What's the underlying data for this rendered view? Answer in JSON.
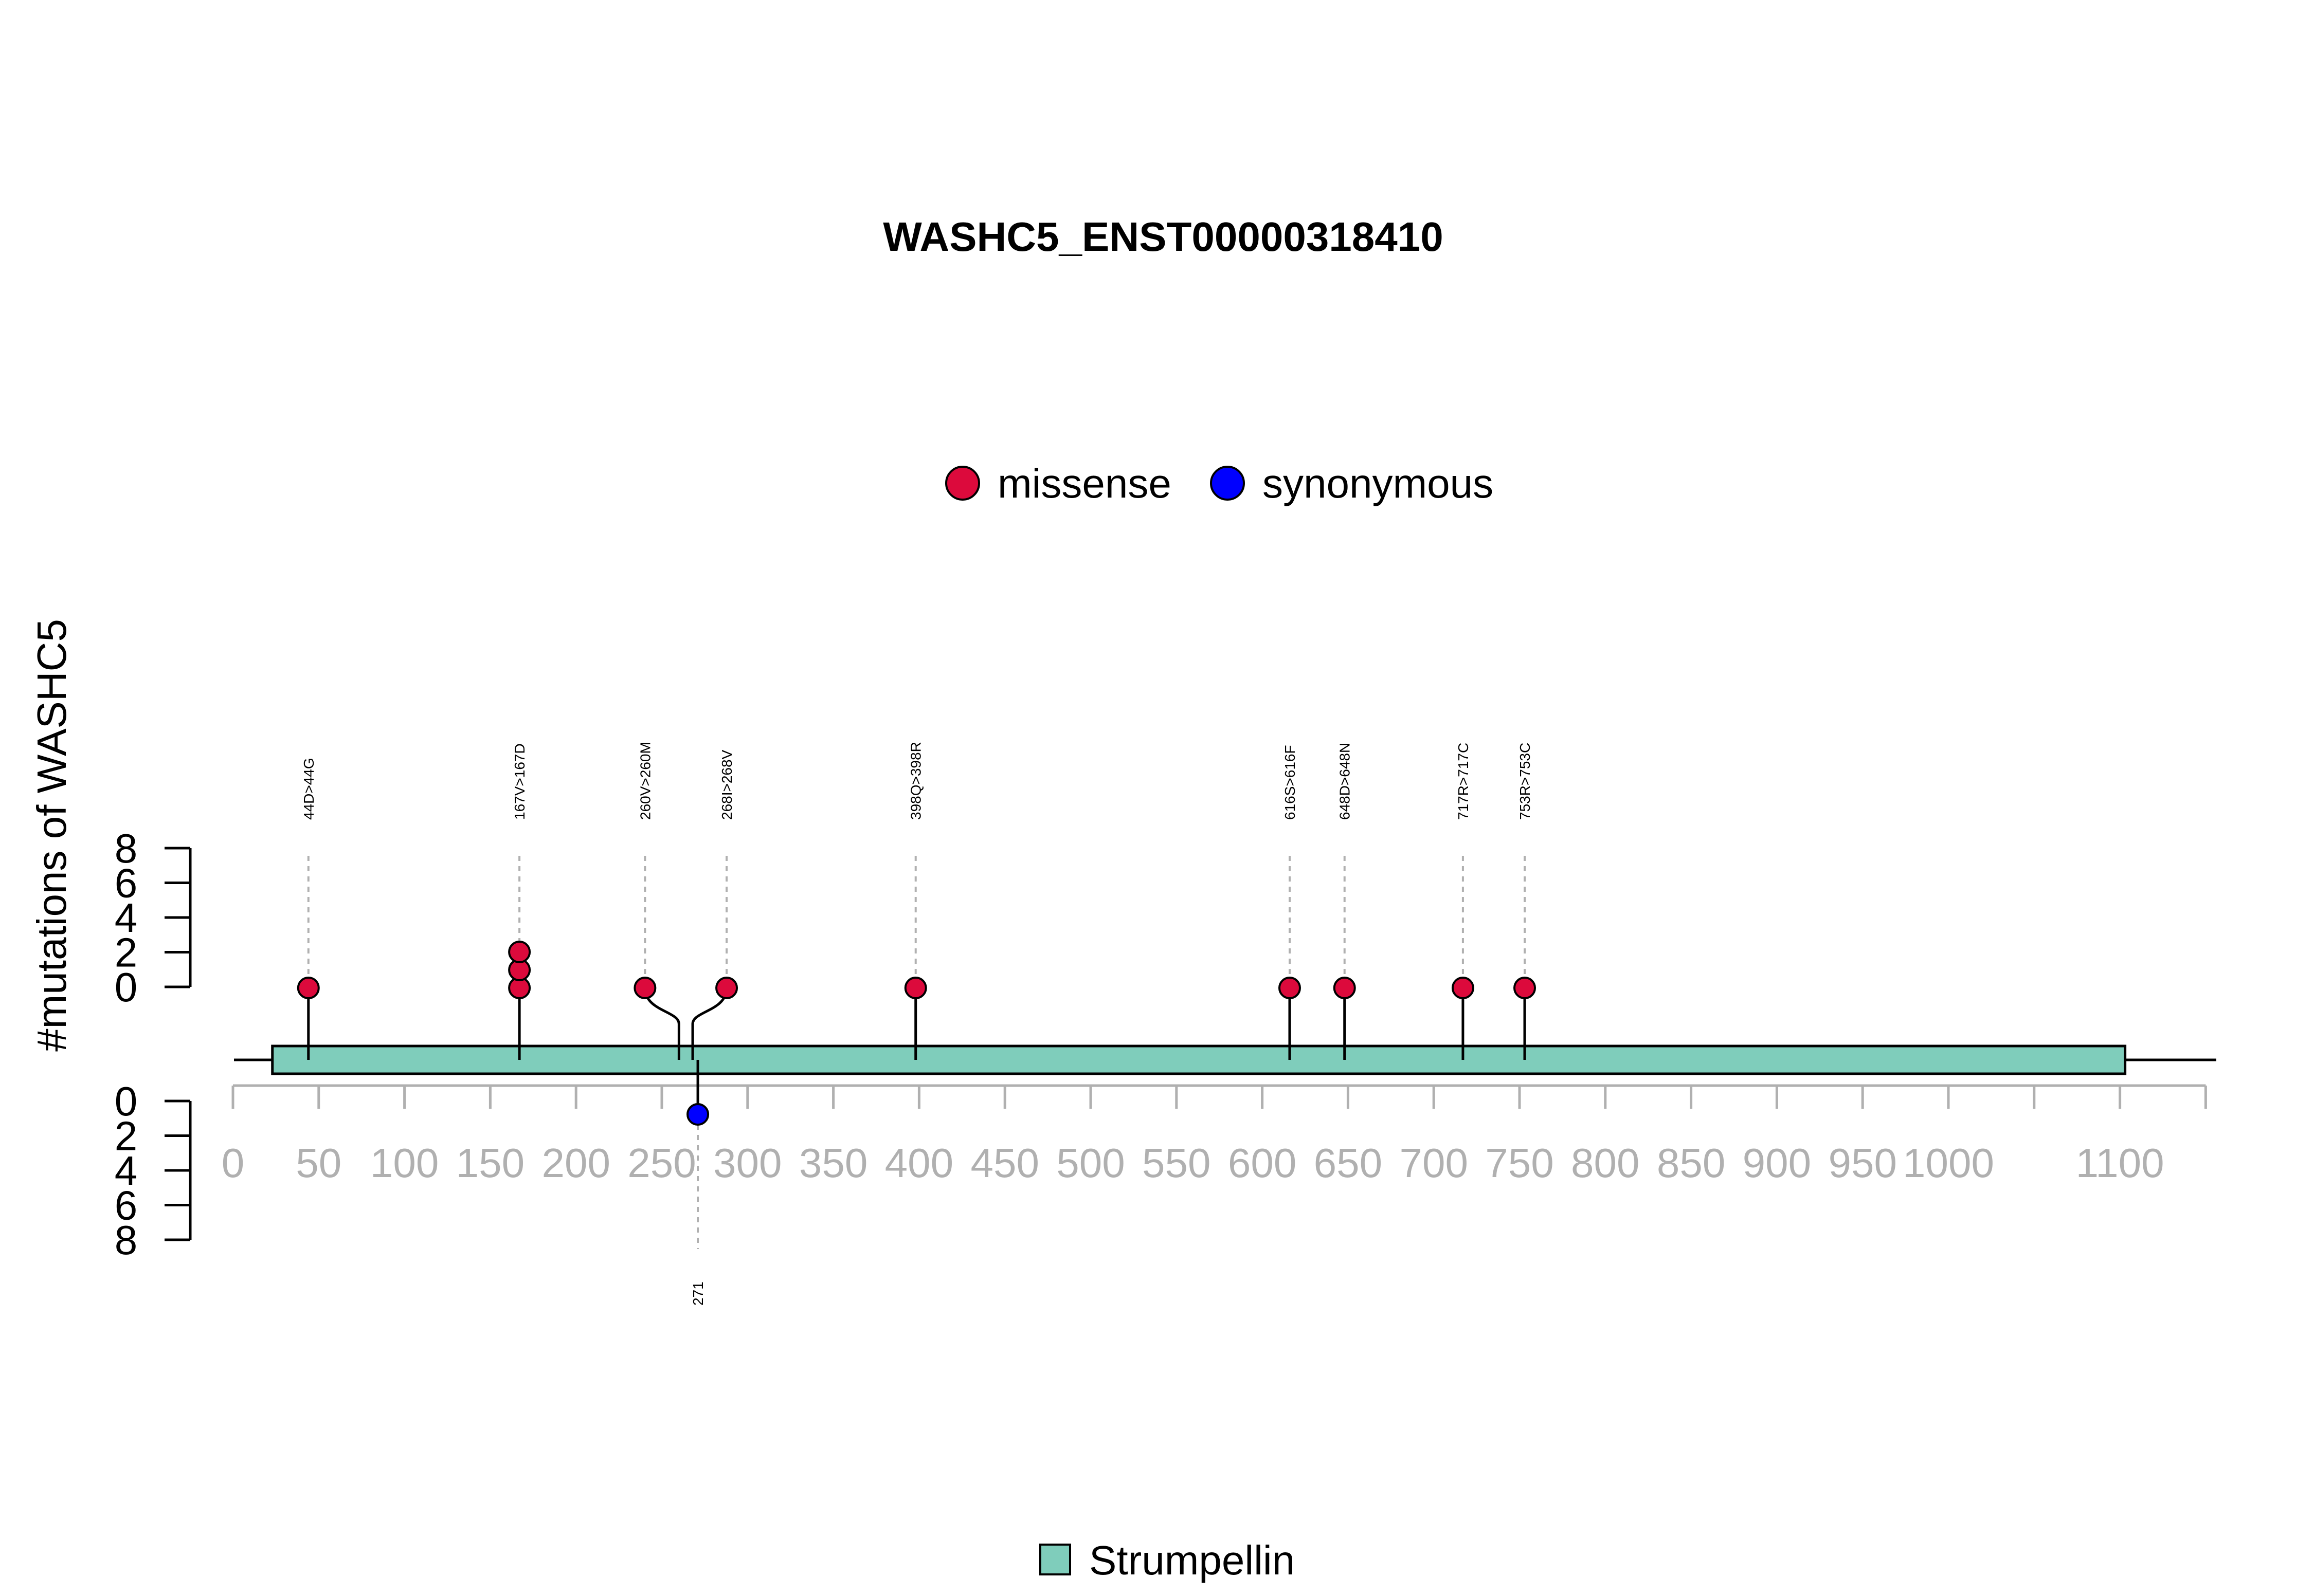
{
  "chart_data": {
    "type": "lollipop",
    "title": "WASHC5_ENST00000318410",
    "ylabel": "#mutations of WASHC5",
    "xlim": [
      0,
      1150
    ],
    "x_ticks": [
      0,
      50,
      100,
      150,
      200,
      250,
      300,
      350,
      400,
      450,
      500,
      550,
      600,
      650,
      700,
      750,
      800,
      850,
      900,
      950,
      1000,
      1100
    ],
    "y_ticks": [
      0,
      2,
      4,
      6,
      8
    ],
    "legend_top": {
      "placement": "top-center",
      "items": [
        {
          "label": "missense",
          "color": "#dc0a3c"
        },
        {
          "label": "synonymous",
          "color": "#0000ff"
        }
      ]
    },
    "domain_legend": {
      "placement": "bottom-center",
      "items": [
        {
          "label": "Strumpellin",
          "color": "#7fcdbb"
        }
      ]
    },
    "domains": [
      {
        "name": "Strumpellin",
        "start": 23,
        "end": 1103,
        "color": "#7fcdbb"
      }
    ],
    "upper_mutations": [
      {
        "position": 44,
        "label": "44D>44G",
        "count": 1,
        "type": "missense",
        "label_offset": 0
      },
      {
        "position": 167,
        "label": "167V>167D",
        "count": 3,
        "type": "missense",
        "label_offset": 0
      },
      {
        "position": 260,
        "label": "260V>260M",
        "count": 1,
        "type": "missense",
        "label_offset": -6
      },
      {
        "position": 268,
        "label": "268I>268V",
        "count": 1,
        "type": "missense",
        "label_offset": 6
      },
      {
        "position": 398,
        "label": "398Q>398R",
        "count": 1,
        "type": "missense",
        "label_offset": 0
      },
      {
        "position": 616,
        "label": "616S>616F",
        "count": 1,
        "type": "missense",
        "label_offset": 0
      },
      {
        "position": 648,
        "label": "648D>648N",
        "count": 1,
        "type": "missense",
        "label_offset": 0
      },
      {
        "position": 717,
        "label": "717R>717C",
        "count": 1,
        "type": "missense",
        "label_offset": 0
      },
      {
        "position": 753,
        "label": "753R>753C",
        "count": 1,
        "type": "missense",
        "label_offset": 0
      }
    ],
    "lower_mutations": [
      {
        "position": 271,
        "label": "271",
        "count": 1,
        "type": "synonymous"
      }
    ]
  }
}
